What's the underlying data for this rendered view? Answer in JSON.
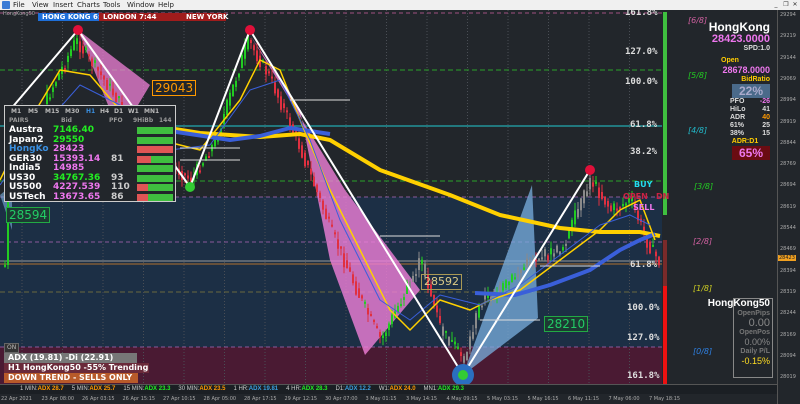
{
  "menu": [
    "File",
    "View",
    "Insert",
    "Charts",
    "Tools",
    "Window",
    "Help"
  ],
  "window_controls": [
    "_",
    "❐",
    "✕"
  ],
  "sessions": [
    {
      "label": "HONG KONG 6:44",
      "color": "#1e6fd9"
    },
    {
      "label": "LONDON 7:44",
      "color": "#a01c1c"
    },
    {
      "label": "NEW YORK",
      "color": "#a01c1c"
    }
  ],
  "symbol_tab": "HongKong50",
  "pairs_table": {
    "timeframes": [
      "M1",
      "M5",
      "M15",
      "M30",
      "H1",
      "H4",
      "D1",
      "W1",
      "MN1"
    ],
    "active_timeframe": "H1",
    "headers": [
      "PAIRS",
      "Bid",
      "PFO",
      "9HiBb",
      "144"
    ],
    "rows": [
      {
        "pair": "Austra",
        "bid": "7146.40",
        "pfo": "",
        "sell_pct": 0,
        "bid_color": "#22ee22",
        "pair_color": "#ffffff"
      },
      {
        "pair": "Japan2",
        "bid": "29550",
        "pfo": "",
        "sell_pct": 0,
        "bid_color": "#22ee22",
        "pair_color": "#ffffff"
      },
      {
        "pair": "HongKo",
        "bid": "28423",
        "pfo": "",
        "sell_pct": 100,
        "bid_color": "#ee77ee",
        "pair_color": "#3a8fe0"
      },
      {
        "pair": "GER30",
        "bid": "15393.14",
        "pfo": "81",
        "sell_pct": 40,
        "bid_color": "#ee77ee",
        "pair_color": "#ffffff"
      },
      {
        "pair": "India5",
        "bid": "14985",
        "pfo": "",
        "sell_pct": 0,
        "bid_color": "#ee77ee",
        "pair_color": "#ffffff"
      },
      {
        "pair": "US30",
        "bid": "34767.36",
        "pfo": "93",
        "sell_pct": 0,
        "bid_color": "#22ee22",
        "pair_color": "#ffffff"
      },
      {
        "pair": "US500",
        "bid": "4227.539",
        "pfo": "110",
        "sell_pct": 30,
        "bid_color": "#ee77ee",
        "pair_color": "#ffffff"
      },
      {
        "pair": "USTech",
        "bid": "13673.65",
        "pfo": "86",
        "sell_pct": 30,
        "bid_color": "#ee77ee",
        "pair_color": "#ffffff"
      }
    ]
  },
  "price_boxes": {
    "upper": "29043",
    "left": "28594",
    "mid": "28592",
    "lower": "28210"
  },
  "fib_levels": [
    "161.8%",
    "127.0%",
    "100.0%",
    "61.8%",
    "38.2%",
    "61.8%",
    "100.0%",
    "127.0%",
    "161.8%"
  ],
  "murrey_levels": [
    {
      "label": "[6/8]",
      "color": "#d060a0"
    },
    {
      "label": "[5/8]",
      "color": "#22cc22"
    },
    {
      "label": "[4/8]",
      "color": "#22bbcc"
    },
    {
      "label": "[3/8]",
      "color": "#22cc22"
    },
    {
      "label": "[2/8]",
      "color": "#d060a0"
    },
    {
      "label": "[1/8]",
      "color": "#cccc22"
    },
    {
      "label": "[0/8]",
      "color": "#2e7fe0"
    }
  ],
  "signals": {
    "buy": "BUY",
    "open": "OPEN",
    "dn": "DN",
    "sell": "SELL"
  },
  "info_panel": {
    "symbol": "HongKong",
    "bid": "28423.0000",
    "spread": "SPD:1.0",
    "open_label": "Open",
    "open": "28678.0000",
    "bid_ratio_label": "BidRatio",
    "bid_ratio": "22%",
    "stats": [
      {
        "k": "PFO",
        "v": "-26",
        "c": "#ee77ee"
      },
      {
        "k": "HiLo",
        "v": "41",
        "c": "#dddddd"
      },
      {
        "k": "ADR",
        "v": "40",
        "c": "#ff9900"
      },
      {
        "k": "61%",
        "v": "25",
        "c": "#dddddd"
      },
      {
        "k": "38%",
        "v": "15",
        "c": "#dddddd"
      }
    ],
    "adr_label": "ADR:D1",
    "adr_pct": "65%"
  },
  "pl_panel": {
    "symbol": "HongKong50",
    "open_pips_label": "OpenPips",
    "open_pips": "0.00",
    "open_pos_label": "OpenPos",
    "open_pos": "0.00%",
    "daily_pl_label": "Daily P/L",
    "daily_pl": "-0.15%"
  },
  "adx_panel": {
    "toggle": "ON",
    "line1": "ADX (19.81)  -Di (22.91)",
    "line2": "H1 HongKong50 -55% Trending",
    "line3": "DOWN TREND - SELLS ONLY"
  },
  "adx_strip": [
    {
      "tf": "1 MIN:",
      "adx": "ADX 28.7",
      "color": "#ff9900",
      "state": "CHANGE"
    },
    {
      "tf": "5 MIN:",
      "adx": "ADX 25.7",
      "color": "#ff9900",
      "state": "WEAKER"
    },
    {
      "tf": "15 MIN:",
      "adx": "ADX 23.3",
      "color": "#22ee22",
      "state": "WEAKER"
    },
    {
      "tf": "30 MIN:",
      "adx": "ADX 23.5",
      "color": "#ff9900",
      "state": "WEAKER"
    },
    {
      "tf": "1 HR:",
      "adx": "ADX 19.81",
      "color": "#3a9fe0",
      "state": "RANGING"
    },
    {
      "tf": "4 HR:",
      "adx": "ADX 28.3",
      "color": "#22ee22",
      "state": "WEAKER"
    },
    {
      "tf": "D1:",
      "adx": "ADX 12.2",
      "color": "#3a9fe0",
      "state": "RANGING"
    },
    {
      "tf": "W1:",
      "adx": "ADX 24.0",
      "color": "#ff9900",
      "state": "WEAKER"
    },
    {
      "tf": "MN1:",
      "adx": "ADX 29.3",
      "color": "#22ee22",
      "state": "WEAKER"
    }
  ],
  "price_axis": [
    "29294",
    "29219",
    "29144",
    "29069",
    "28994",
    "28919",
    "28844",
    "28769",
    "28694",
    "28619",
    "28544",
    "28469",
    "28394",
    "28319",
    "28244",
    "28169",
    "28094",
    "28019"
  ],
  "current_price": "28423",
  "time_axis": [
    "22 Apr 2021",
    "23 Apr 08:00",
    "26 Apr 03:15",
    "26 Apr 15:15",
    "27 Apr 10:15",
    "28 Apr 05:00",
    "28 Apr 17:15",
    "29 Apr 12:15",
    "30 Apr 07:00",
    "3 May 01:15",
    "3 May 14:15",
    "4 May 09:15",
    "5 May 03:15",
    "5 May 16:15",
    "6 May 11:15",
    "7 May 06:00",
    "7 May 18:15"
  ],
  "colors": {
    "bg": "#22262b",
    "bull": "#22cc22",
    "bear": "#e03040",
    "ma_slow": "#ffd000",
    "ma_blue": "#3a5fd9"
  }
}
